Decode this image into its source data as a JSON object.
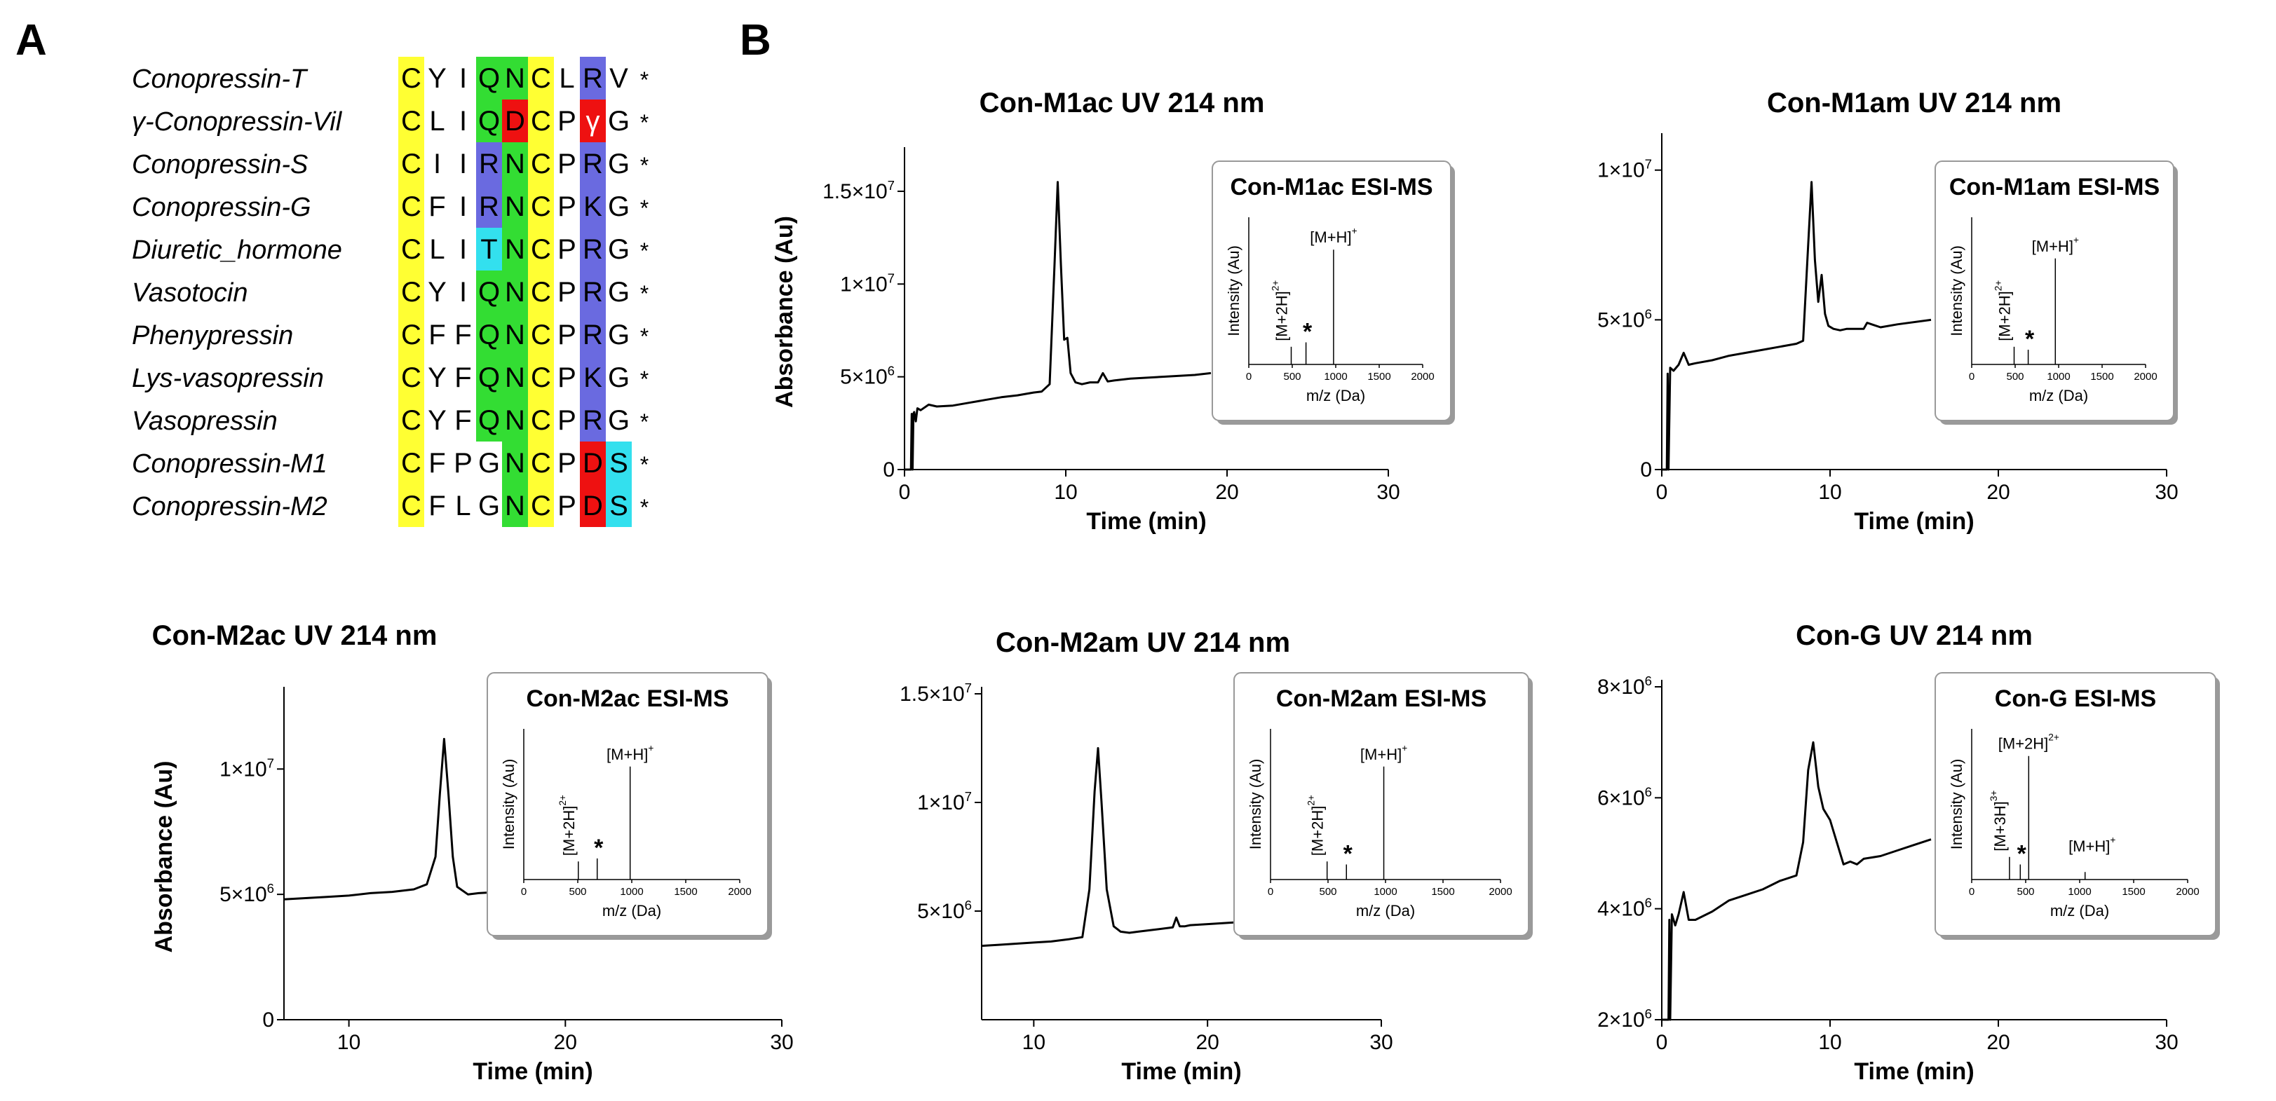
{
  "panel_a_label": "A",
  "panel_b_label": "B",
  "alignment": {
    "rows": [
      {
        "name": "Conopressin-T",
        "residues": [
          "C",
          "Y",
          "I",
          "Q",
          "N",
          "C",
          "L",
          "R",
          "V"
        ]
      },
      {
        "name": "γ-Conopressin-Vil",
        "residues": [
          "C",
          "L",
          "I",
          "Q",
          "D",
          "C",
          "P",
          "γ",
          "G"
        ]
      },
      {
        "name": "Conopressin-S",
        "residues": [
          "C",
          "I",
          "I",
          "R",
          "N",
          "C",
          "P",
          "R",
          "G"
        ]
      },
      {
        "name": "Conopressin-G",
        "residues": [
          "C",
          "F",
          "I",
          "R",
          "N",
          "C",
          "P",
          "K",
          "G"
        ]
      },
      {
        "name": "Diuretic_hormone",
        "residues": [
          "C",
          "L",
          "I",
          "T",
          "N",
          "C",
          "P",
          "R",
          "G"
        ]
      },
      {
        "name": "Vasotocin",
        "residues": [
          "C",
          "Y",
          "I",
          "Q",
          "N",
          "C",
          "P",
          "R",
          "G"
        ]
      },
      {
        "name": "Phenypressin",
        "residues": [
          "C",
          "F",
          "F",
          "Q",
          "N",
          "C",
          "P",
          "R",
          "G"
        ]
      },
      {
        "name": "Lys-vasopressin",
        "residues": [
          "C",
          "Y",
          "F",
          "Q",
          "N",
          "C",
          "P",
          "K",
          "G"
        ]
      },
      {
        "name": "Vasopressin",
        "residues": [
          "C",
          "Y",
          "F",
          "Q",
          "N",
          "C",
          "P",
          "R",
          "G"
        ]
      },
      {
        "name": "Conopressin-M1",
        "residues": [
          "C",
          "F",
          "P",
          "G",
          "N",
          "C",
          "P",
          "D",
          "S"
        ]
      },
      {
        "name": "Conopressin-M2",
        "residues": [
          "C",
          "F",
          "L",
          "G",
          "N",
          "C",
          "P",
          "D",
          "S"
        ]
      }
    ],
    "terminal_mark": "*",
    "colors": {
      "cys": "#ffff33",
      "green": "#33dd33",
      "blue": "#6a6ae0",
      "red": "#ee1111",
      "cyan": "#33e0ee"
    },
    "highlights": [
      {
        "cols": [
          0
        ],
        "rows": "all",
        "color": "cys"
      },
      {
        "cols": [
          5
        ],
        "rows": "all",
        "color": "cys"
      },
      {
        "cols": [
          3,
          4
        ],
        "rows": [
          0,
          1,
          5,
          6,
          7,
          8
        ],
        "color": "green"
      },
      {
        "cols": [
          4
        ],
        "rows": [
          2,
          3,
          4,
          9,
          10
        ],
        "color": "green"
      },
      {
        "cols": [
          3
        ],
        "rows": [
          2,
          3
        ],
        "color": "blue"
      },
      {
        "cols": [
          3
        ],
        "rows": [
          4
        ],
        "color": "cyan"
      },
      {
        "cols": [
          4
        ],
        "rows": [
          1
        ],
        "color": "red"
      },
      {
        "cols": [
          7
        ],
        "rows": [
          0,
          2,
          3,
          4,
          5,
          6,
          7,
          8
        ],
        "color": "blue"
      },
      {
        "cols": [
          7
        ],
        "rows": [
          1,
          9,
          10
        ],
        "color": "red"
      },
      {
        "cols": [
          8
        ],
        "rows": [
          9,
          10
        ],
        "color": "cyan"
      }
    ]
  },
  "chart_data": [
    {
      "type": "line",
      "title": "Con-M1ac UV 214 nm",
      "xlabel": "Time (min)",
      "ylabel": "Absorbance (Au)",
      "xlim": [
        0,
        30
      ],
      "ylim": [
        0,
        17000000
      ],
      "xticks": [
        0,
        10,
        20,
        30
      ],
      "yticks": [
        {
          "value": 0,
          "base": "0",
          "exp": ""
        },
        {
          "value": 5000000,
          "base": "5×10",
          "exp": "6"
        },
        {
          "value": 10000000,
          "base": "1×10",
          "exp": "7"
        },
        {
          "value": 15000000,
          "base": "1.5×10",
          "exp": "7"
        }
      ],
      "series": [
        {
          "x": [
            0,
            0.4,
            0.45,
            0.5,
            0.55,
            0.6,
            0.7,
            0.8,
            1.0,
            1.5,
            2,
            3,
            4,
            5,
            6,
            7,
            8,
            8.5,
            9,
            9.3,
            9.5,
            9.7,
            9.9,
            10.1,
            10.3,
            10.6,
            11,
            11.5,
            12,
            12.3,
            12.6,
            13,
            14,
            16,
            18,
            19
          ],
          "y": [
            0,
            0,
            3000000,
            0,
            3000000,
            3100000,
            2600000,
            3300000,
            3200000,
            3500000,
            3400000,
            3450000,
            3600000,
            3750000,
            3900000,
            4000000,
            4150000,
            4200000,
            4600000,
            11000000,
            15500000,
            11000000,
            7000000,
            7100000,
            5200000,
            4700000,
            4600000,
            4700000,
            4700000,
            5200000,
            4750000,
            4800000,
            4900000,
            5000000,
            5100000,
            5200000
          ]
        }
      ],
      "inset": {
        "title": "Con-M1ac ESI-MS",
        "xlabel": "m/z (Da)",
        "ylabel": "Intensity (Au)",
        "xlim": [
          0,
          2000
        ],
        "xticks": [
          0,
          500,
          1000,
          1500,
          2000
        ],
        "peaks": [
          {
            "x": 488,
            "h": 0.12
          },
          {
            "x": 658,
            "h": 0.15
          },
          {
            "x": 975,
            "h": 0.78
          }
        ],
        "labels": [
          {
            "text": "[M+2H]",
            "sup": "2+",
            "vertical": true
          },
          {
            "text": "[M+H]",
            "sup": "+",
            "vertical": false
          }
        ],
        "star": "*"
      }
    },
    {
      "type": "line",
      "title": "Con-M1am UV 214 nm",
      "xlabel": "Time (min)",
      "ylabel": "",
      "xlim": [
        0,
        30
      ],
      "ylim": [
        0,
        11000000
      ],
      "xticks": [
        0,
        10,
        20,
        30
      ],
      "yticks": [
        {
          "value": 0,
          "base": "0",
          "exp": ""
        },
        {
          "value": 5000000,
          "base": "5×10",
          "exp": "6"
        },
        {
          "value": 10000000,
          "base": "1×10",
          "exp": "7"
        }
      ],
      "series": [
        {
          "x": [
            0,
            0.3,
            0.35,
            0.4,
            0.5,
            0.7,
            1.0,
            1.3,
            1.6,
            2,
            3,
            4,
            5,
            6,
            7,
            8,
            8.4,
            8.7,
            8.9,
            9.1,
            9.3,
            9.5,
            9.7,
            9.9,
            10.2,
            10.6,
            11,
            12,
            12.2,
            13,
            14,
            16
          ],
          "y": [
            0,
            0,
            3200000,
            0,
            3400000,
            3300000,
            3500000,
            3900000,
            3500000,
            3550000,
            3650000,
            3800000,
            3900000,
            4000000,
            4100000,
            4200000,
            4300000,
            7500000,
            9600000,
            7000000,
            5600000,
            6500000,
            5200000,
            4800000,
            4700000,
            4650000,
            4700000,
            4700000,
            4900000,
            4750000,
            4850000,
            5000000
          ]
        }
      ],
      "inset": {
        "title": "Con-M1am ESI-MS",
        "xlabel": "m/z (Da)",
        "ylabel": "Intensity (Au)",
        "xlim": [
          0,
          2000
        ],
        "xticks": [
          0,
          500,
          1000,
          1500,
          2000
        ],
        "peaks": [
          {
            "x": 488,
            "h": 0.12
          },
          {
            "x": 650,
            "h": 0.1
          },
          {
            "x": 962,
            "h": 0.72
          }
        ],
        "labels": [
          {
            "text": "[M+2H]",
            "sup": "2+",
            "vertical": true
          },
          {
            "text": "[M+H]",
            "sup": "+",
            "vertical": false
          }
        ],
        "star": "*"
      }
    },
    {
      "type": "line",
      "title": "Con-M2ac UV 214 nm",
      "xlabel": "Time (min)",
      "ylabel": "Absorbance (Au)",
      "xlim": [
        7,
        30
      ],
      "ylim": [
        0,
        13000000
      ],
      "xticks": [
        10,
        20,
        30
      ],
      "yticks": [
        {
          "value": 0,
          "base": "0",
          "exp": ""
        },
        {
          "value": 5000000,
          "base": "5×10",
          "exp": "6"
        },
        {
          "value": 10000000,
          "base": "1×10",
          "exp": "7"
        }
      ],
      "series": [
        {
          "x": [
            7,
            8,
            9,
            10,
            11,
            12,
            13,
            13.6,
            14,
            14.2,
            14.4,
            14.6,
            14.8,
            15,
            15.5,
            16,
            17
          ],
          "y": [
            4800000,
            4850000,
            4900000,
            4950000,
            5050000,
            5100000,
            5200000,
            5400000,
            6500000,
            9000000,
            11200000,
            9000000,
            6500000,
            5300000,
            5000000,
            5050000,
            5100000
          ]
        }
      ],
      "inset": {
        "title": "Con-M2ac ESI-MS",
        "xlabel": "m/z (Da)",
        "ylabel": "Intensity (Au)",
        "xlim": [
          0,
          2000
        ],
        "xticks": [
          0,
          500,
          1000,
          1500,
          2000
        ],
        "peaks": [
          {
            "x": 505,
            "h": 0.12
          },
          {
            "x": 680,
            "h": 0.14
          },
          {
            "x": 985,
            "h": 0.75
          }
        ],
        "labels": [
          {
            "text": "[M+2H]",
            "sup": "2+",
            "vertical": true
          },
          {
            "text": "[M+H]",
            "sup": "+",
            "vertical": false
          }
        ],
        "star": "*"
      }
    },
    {
      "type": "line",
      "title": "Con-M2am UV 214 nm",
      "xlabel": "Time (min)",
      "ylabel": "",
      "xlim": [
        7,
        30
      ],
      "ylim": [
        0,
        15000000
      ],
      "xticks": [
        10,
        20,
        30
      ],
      "yticks": [
        {
          "value": 5000000,
          "base": "5×10",
          "exp": "6"
        },
        {
          "value": 10000000,
          "base": "1×10",
          "exp": "7"
        },
        {
          "value": 15000000,
          "base": "1.5×10",
          "exp": "7"
        }
      ],
      "series": [
        {
          "x": [
            7,
            8,
            9,
            10,
            11,
            12,
            12.8,
            13.2,
            13.5,
            13.7,
            13.9,
            14.2,
            14.6,
            15,
            15.5,
            16,
            17,
            18,
            18.2,
            18.4,
            18.7,
            19,
            20,
            22,
            24,
            26,
            28,
            30
          ],
          "y": [
            3400000,
            3450000,
            3500000,
            3550000,
            3600000,
            3700000,
            3800000,
            6000000,
            10500000,
            12500000,
            10000000,
            6000000,
            4300000,
            4050000,
            4000000,
            4050000,
            4150000,
            4250000,
            4700000,
            4300000,
            4300000,
            4350000,
            4400000,
            4500000,
            4600000,
            4700000,
            4800000,
            4900000
          ]
        }
      ],
      "inset": {
        "title": "Con-M2am ESI-MS",
        "xlabel": "m/z (Da)",
        "ylabel": "Intensity (Au)",
        "xlim": [
          0,
          2000
        ],
        "xticks": [
          0,
          500,
          1000,
          1500,
          2000
        ],
        "peaks": [
          {
            "x": 492,
            "h": 0.12
          },
          {
            "x": 660,
            "h": 0.1
          },
          {
            "x": 985,
            "h": 0.75
          }
        ],
        "labels": [
          {
            "text": "[M+2H]",
            "sup": "2+",
            "vertical": true
          },
          {
            "text": "[M+H]",
            "sup": "+",
            "vertical": false
          }
        ],
        "star": "*"
      }
    },
    {
      "type": "line",
      "title": "Con-G UV 214 nm",
      "xlabel": "Time (min)",
      "ylabel": "",
      "xlim": [
        0,
        30
      ],
      "ylim": [
        2000000,
        8000000
      ],
      "xticks": [
        0,
        10,
        20,
        30
      ],
      "yticks": [
        {
          "value": 2000000,
          "base": "2×10",
          "exp": "6"
        },
        {
          "value": 4000000,
          "base": "4×10",
          "exp": "6"
        },
        {
          "value": 6000000,
          "base": "6×10",
          "exp": "6"
        },
        {
          "value": 8000000,
          "base": "8×10",
          "exp": "6"
        }
      ],
      "series": [
        {
          "x": [
            0,
            0.4,
            0.45,
            0.5,
            0.6,
            0.8,
            1.0,
            1.3,
            1.6,
            2,
            3,
            4,
            5,
            6,
            7,
            8,
            8.4,
            8.7,
            9.0,
            9.3,
            9.6,
            10,
            10.4,
            10.8,
            11.2,
            11.6,
            12,
            13,
            14,
            15,
            16
          ],
          "y": [
            2000000,
            2000000,
            3800000,
            2000000,
            3900000,
            3700000,
            3900000,
            4300000,
            3800000,
            3800000,
            3950000,
            4150000,
            4250000,
            4350000,
            4500000,
            4600000,
            5200000,
            6500000,
            7000000,
            6200000,
            5800000,
            5600000,
            5200000,
            4800000,
            4850000,
            4800000,
            4900000,
            4950000,
            5050000,
            5150000,
            5250000
          ]
        }
      ],
      "inset": {
        "title": "Con-G ESI-MS",
        "xlabel": "m/z (Da)",
        "ylabel": "Intensity (Au)",
        "xlim": [
          0,
          2000
        ],
        "xticks": [
          0,
          500,
          1000,
          1500,
          2000
        ],
        "peaks": [
          {
            "x": 350,
            "h": 0.15
          },
          {
            "x": 450,
            "h": 0.1
          },
          {
            "x": 528,
            "h": 0.82
          },
          {
            "x": 1050,
            "h": 0.05
          }
        ],
        "labels": [
          {
            "text": "[M+3H]",
            "sup": "3+",
            "vertical": true
          },
          {
            "text": "[M+2H]",
            "sup": "2+",
            "vertical": false
          },
          {
            "text": "[M+H]",
            "sup": "+",
            "vertical": false
          }
        ],
        "star": "*"
      }
    }
  ]
}
